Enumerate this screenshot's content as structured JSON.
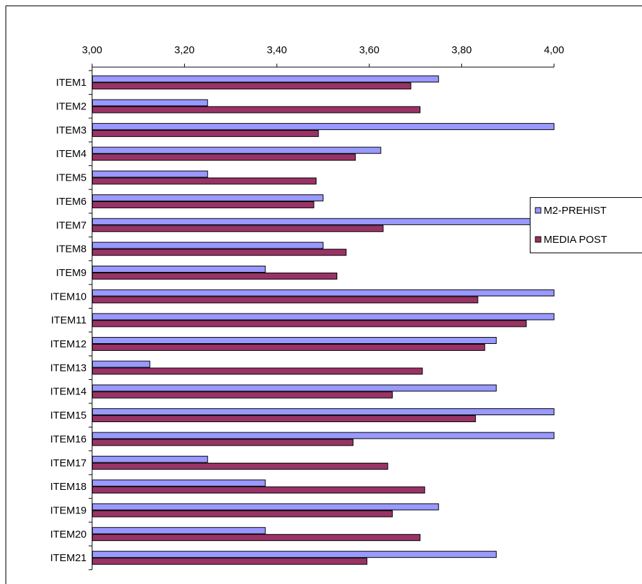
{
  "chart_data": {
    "type": "bar",
    "orientation": "horizontal",
    "categories": [
      "ITEM1",
      "ITEM2",
      "ITEM3",
      "ITEM4",
      "ITEM5",
      "ITEM6",
      "ITEM7",
      "ITEM8",
      "ITEM9",
      "ITEM10",
      "ITEM11",
      "ITEM12",
      "ITEM13",
      "ITEM14",
      "ITEM15",
      "ITEM16",
      "ITEM17",
      "ITEM18",
      "ITEM19",
      "ITEM20",
      "ITEM21"
    ],
    "series": [
      {
        "name": "M2-PREHIST",
        "color": "#9999ff",
        "values": [
          3.75,
          3.25,
          4.0,
          3.625,
          3.25,
          3.5,
          4.0,
          3.5,
          3.375,
          4.0,
          4.0,
          3.875,
          3.125,
          3.875,
          4.0,
          4.0,
          3.25,
          3.375,
          3.75,
          3.375,
          3.875
        ]
      },
      {
        "name": "MEDIA POST",
        "color": "#993366",
        "values": [
          3.69,
          3.71,
          3.49,
          3.57,
          3.485,
          3.48,
          3.63,
          3.55,
          3.53,
          3.835,
          3.94,
          3.85,
          3.715,
          3.65,
          3.83,
          3.565,
          3.64,
          3.72,
          3.65,
          3.71,
          3.595
        ]
      }
    ],
    "xlim": [
      3.0,
      4.0
    ],
    "xticks": [
      "3,00",
      "3,20",
      "3,40",
      "3,60",
      "3,80",
      "4,00"
    ],
    "xtick_values": [
      3.0,
      3.2,
      3.4,
      3.6,
      3.8,
      4.0
    ],
    "axis_position": "top",
    "grid": false,
    "legend": "right",
    "title": "",
    "xlabel": "",
    "ylabel": ""
  }
}
